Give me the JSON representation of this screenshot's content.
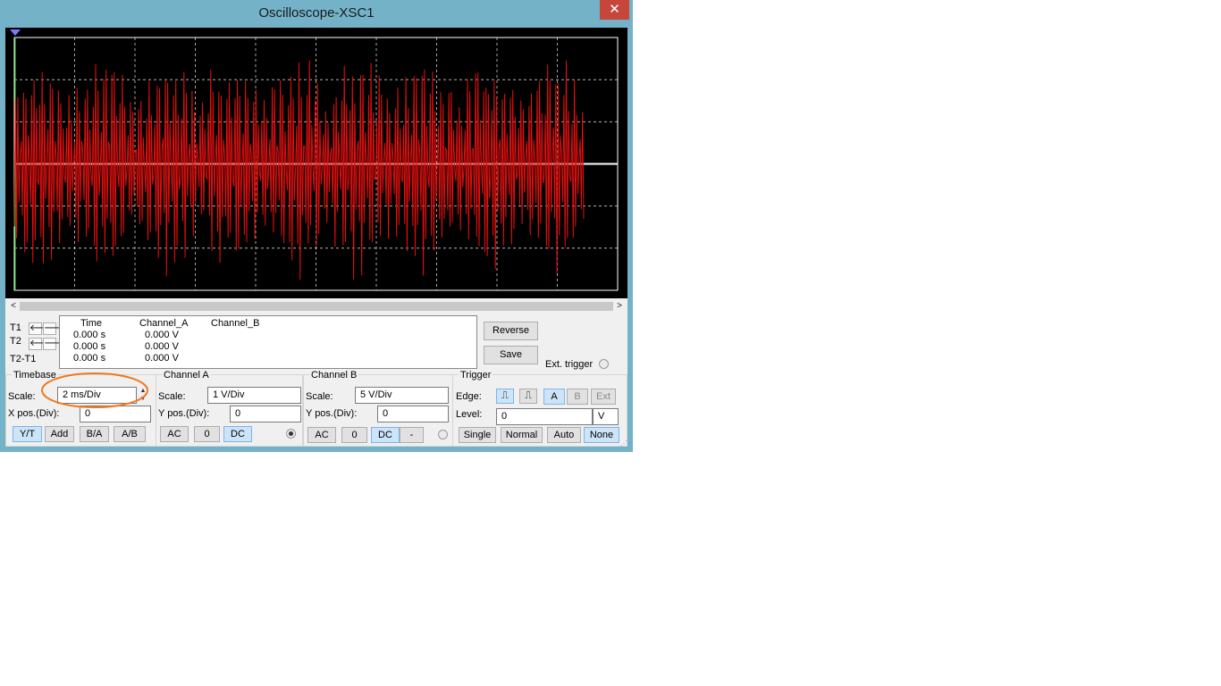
{
  "window": {
    "title": "Oscilloscope-XSC1",
    "close_glyph": "✕"
  },
  "screen": {
    "background": "#000000",
    "trace_color": "#e01010",
    "baseline_color": "#ffffff",
    "grid_color": "#ffffff"
  },
  "scroll": {
    "left": "<",
    "right": ">"
  },
  "cursors": {
    "t1": "T1",
    "t2": "T2",
    "diff": "T2-T1"
  },
  "readout": {
    "headers": [
      "Time",
      "Channel_A",
      "Channel_B"
    ],
    "rows": [
      {
        "time": "0.000 s",
        "a": "0.000 V",
        "b": ""
      },
      {
        "time": "0.000 s",
        "a": "0.000 V",
        "b": ""
      },
      {
        "time": "0.000 s",
        "a": "0.000 V",
        "b": ""
      }
    ]
  },
  "buttons": {
    "reverse": "Reverse",
    "save": "Save",
    "ext_trigger": "Ext. trigger"
  },
  "timebase": {
    "title": "Timebase",
    "scale_label": "Scale:",
    "scale_value": "2 ms/Div",
    "xpos_label": "X pos.(Div):",
    "xpos_value": "0",
    "modes": [
      "Y/T",
      "Add",
      "B/A",
      "A/B"
    ],
    "selected_mode": "Y/T"
  },
  "channel_a": {
    "title": "Channel A",
    "scale_label": "Scale:",
    "scale_value": "1  V/Div",
    "ypos_label": "Y pos.(Div):",
    "ypos_value": "0",
    "coupling": [
      "AC",
      "0",
      "DC"
    ],
    "selected_coupling": "DC"
  },
  "channel_b": {
    "title": "Channel B",
    "scale_label": "Scale:",
    "scale_value": "5  V/Div",
    "ypos_label": "Y pos.(Div):",
    "ypos_value": "0",
    "coupling": [
      "AC",
      "0",
      "DC",
      "-"
    ],
    "selected_coupling": "DC"
  },
  "trigger": {
    "title": "Trigger",
    "edge_label": "Edge:",
    "sources": [
      "A",
      "B",
      "Ext"
    ],
    "selected_source": "A",
    "level_label": "Level:",
    "level_value": "0",
    "level_unit": "V",
    "modes": [
      "Single",
      "Normal",
      "Auto",
      "None"
    ],
    "selected_mode": "None"
  },
  "annotation": {
    "highlight_color": "#ef7a22"
  }
}
